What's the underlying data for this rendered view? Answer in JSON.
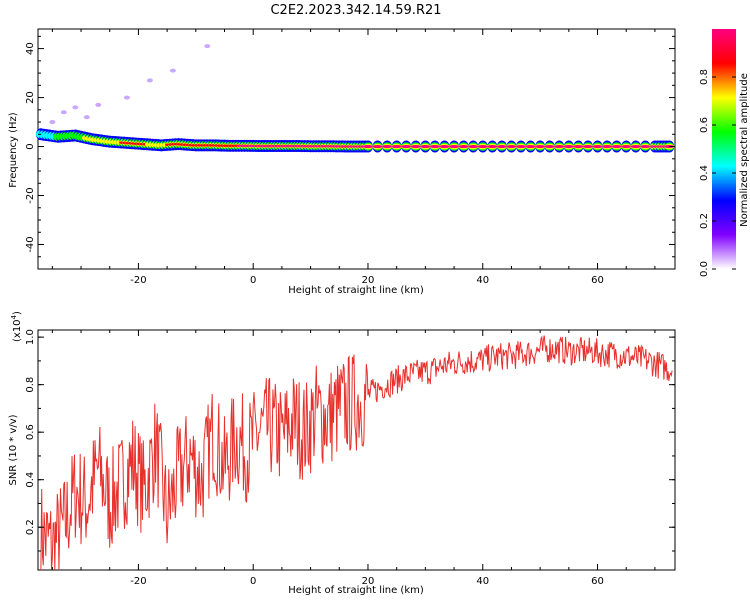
{
  "title": "C2E2.2023.342.14.59.R21",
  "chart_data": [
    {
      "type": "heatmap",
      "xlabel": "Height of straight line (km)",
      "ylabel": "Frequency (Hz)",
      "xlim": [
        -37.5,
        73.5
      ],
      "ylim": [
        -50,
        48
      ],
      "xticks": [
        -20,
        0,
        20,
        40,
        60
      ],
      "yticks": [
        -40,
        -20,
        0,
        20,
        40
      ],
      "grid": false,
      "colorbar": {
        "label": "Normalized spectral amplitude",
        "range": [
          0,
          1
        ],
        "ticks": [
          0.0,
          0.2,
          0.4,
          0.6,
          0.8
        ],
        "colors": [
          "#ffffff",
          "#8000ff",
          "#0000ff",
          "#00ffff",
          "#00ff00",
          "#ffff00",
          "#ff0000",
          "#ff0080"
        ]
      },
      "ridge": {
        "description_free": true,
        "x": [
          -37,
          -34,
          -31,
          -28,
          -25,
          -22,
          -19,
          -16,
          -13,
          -10,
          -7,
          -4,
          -1,
          2,
          5,
          8,
          11,
          14,
          17,
          20,
          30,
          40,
          50,
          60,
          70,
          73
        ],
        "freq": [
          5,
          4,
          4.5,
          3,
          2,
          1.5,
          1,
          0.5,
          1,
          0.5,
          0.5,
          0.3,
          0.3,
          0.2,
          0.2,
          0.2,
          0.1,
          0.1,
          0,
          0,
          0,
          0,
          0,
          0,
          0,
          0
        ],
        "amplitude": [
          0.45,
          0.5,
          0.55,
          0.7,
          0.75,
          0.8,
          0.8,
          0.75,
          0.85,
          0.9,
          0.9,
          0.9,
          0.95,
          0.95,
          0.95,
          0.95,
          0.95,
          0.95,
          0.95,
          1,
          1,
          1,
          1,
          1,
          1,
          1
        ]
      }
    },
    {
      "type": "line",
      "xlabel": "Height of straight line (km)",
      "ylabel": "SNR (10 * v/v)",
      "yscale_label": "(x10^4)",
      "yscale_base": "(x10",
      "yscale_exp": "4",
      "yscale_close": ")",
      "xlim": [
        -37.5,
        73.5
      ],
      "ylim": [
        0.02,
        1.03
      ],
      "xticks": [
        -20,
        0,
        20,
        40,
        60
      ],
      "yticks": [
        0.2,
        0.4,
        0.6,
        0.8,
        1.0
      ],
      "ytick_labels": [
        "0.2",
        "0.4",
        "0.6",
        "0.8",
        "1.0"
      ],
      "color": "#e8302c",
      "series": [
        {
          "x": [
            -37,
            -35,
            -33,
            -31,
            -29,
            -27,
            -25,
            -23,
            -21,
            -19,
            -17,
            -15,
            -13,
            -11,
            -9,
            -7,
            -5,
            -3,
            -1,
            1,
            3,
            5,
            7,
            9,
            11,
            13,
            15,
            17,
            19,
            21,
            23,
            25,
            27,
            29,
            31,
            33,
            35,
            37,
            39,
            41,
            43,
            45,
            47,
            49,
            51,
            53,
            55,
            57,
            59,
            61,
            63,
            65,
            67,
            69,
            71,
            73
          ],
          "y": [
            0.18,
            0.12,
            0.2,
            0.35,
            0.3,
            0.45,
            0.3,
            0.38,
            0.48,
            0.35,
            0.55,
            0.25,
            0.42,
            0.5,
            0.4,
            0.6,
            0.45,
            0.58,
            0.52,
            0.6,
            0.62,
            0.58,
            0.65,
            0.6,
            0.68,
            0.66,
            0.7,
            0.72,
            0.74,
            0.77,
            0.8,
            0.82,
            0.84,
            0.85,
            0.86,
            0.88,
            0.89,
            0.9,
            0.9,
            0.91,
            0.92,
            0.92,
            0.93,
            0.94,
            0.95,
            0.95,
            0.94,
            0.94,
            0.94,
            0.93,
            0.93,
            0.92,
            0.91,
            0.9,
            0.88,
            0.86
          ]
        }
      ]
    }
  ]
}
